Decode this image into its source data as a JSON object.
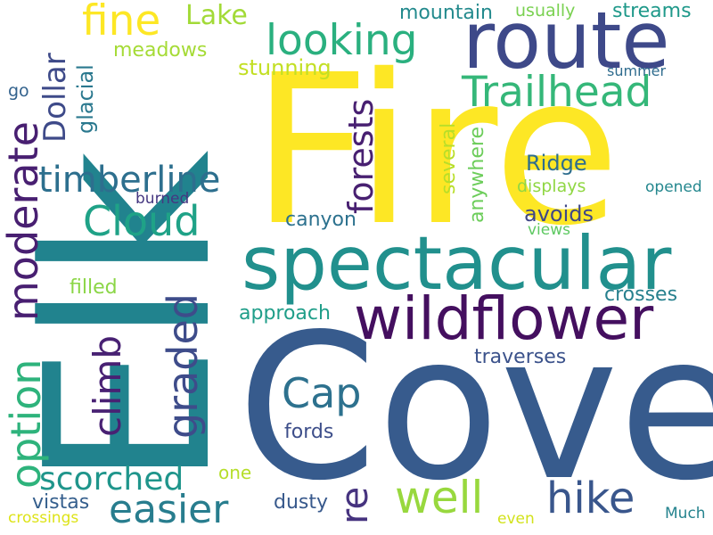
{
  "words": [
    {
      "text": "Fire",
      "color": "#fde725",
      "vertical": false
    },
    {
      "text": "Elk",
      "color": "#21838e",
      "vertical": true
    },
    {
      "text": "Cove",
      "color": "#375b8d",
      "vertical": false
    },
    {
      "text": "route",
      "color": "#3e4989",
      "vertical": false
    },
    {
      "text": "spectacular",
      "color": "#21908d",
      "vertical": false
    },
    {
      "text": "wildflower",
      "color": "#440f5f",
      "vertical": false
    },
    {
      "text": "Trailhead",
      "color": "#35b779",
      "vertical": false
    },
    {
      "text": "looking",
      "color": "#2ab07f",
      "vertical": false
    },
    {
      "text": "fine",
      "color": "#fde725",
      "vertical": false
    },
    {
      "text": "Lake",
      "color": "#a2da37",
      "vertical": false
    },
    {
      "text": "Dollar",
      "color": "#3e4a89",
      "vertical": true
    },
    {
      "text": "moderate",
      "color": "#481f71",
      "vertical": true
    },
    {
      "text": "timberline",
      "color": "#2d6f8e",
      "vertical": false
    },
    {
      "text": "Cloud",
      "color": "#1fa287",
      "vertical": false
    },
    {
      "text": "forests",
      "color": "#482071",
      "vertical": true
    },
    {
      "text": "climb",
      "color": "#482173",
      "vertical": true
    },
    {
      "text": "graded",
      "color": "#3e4c8a",
      "vertical": true
    },
    {
      "text": "option",
      "color": "#2eb37c",
      "vertical": true
    },
    {
      "text": "scorched",
      "color": "#1f958b",
      "vertical": false
    },
    {
      "text": "Cap",
      "color": "#2d718e",
      "vertical": false
    },
    {
      "text": "re",
      "color": "#46337f",
      "vertical": true
    },
    {
      "text": "easier",
      "color": "#287d8e",
      "vertical": false
    },
    {
      "text": "well",
      "color": "#98d83e",
      "vertical": false
    },
    {
      "text": "hike",
      "color": "#39568c",
      "vertical": false
    },
    {
      "text": "mountain",
      "color": "#238a8d",
      "vertical": false
    },
    {
      "text": "usually",
      "color": "#7ad151",
      "vertical": false
    },
    {
      "text": "streams",
      "color": "#1f998a",
      "vertical": false
    },
    {
      "text": "meadows",
      "color": "#a5db36",
      "vertical": false
    },
    {
      "text": "glacial",
      "color": "#2a788e",
      "vertical": true
    },
    {
      "text": "stunning",
      "color": "#c2df23",
      "vertical": false
    },
    {
      "text": "summer",
      "color": "#2f6c8e",
      "vertical": false
    },
    {
      "text": "go",
      "color": "#33628d",
      "vertical": false
    },
    {
      "text": "Ridge",
      "color": "#2e6e8e",
      "vertical": false
    },
    {
      "text": "several",
      "color": "#b8de29",
      "vertical": true
    },
    {
      "text": "anywhere",
      "color": "#6ccd5a",
      "vertical": true
    },
    {
      "text": "displays",
      "color": "#90d743",
      "vertical": false
    },
    {
      "text": "opened",
      "color": "#24878e",
      "vertical": false
    },
    {
      "text": "burned",
      "color": "#453781",
      "vertical": false
    },
    {
      "text": "canyon",
      "color": "#2c718e",
      "vertical": false
    },
    {
      "text": "avoids",
      "color": "#3f4788",
      "vertical": false
    },
    {
      "text": "views",
      "color": "#5ec962",
      "vertical": false
    },
    {
      "text": "filled",
      "color": "#8bd646",
      "vertical": false
    },
    {
      "text": "crosses",
      "color": "#27808e",
      "vertical": false
    },
    {
      "text": "approach",
      "color": "#1f9e89",
      "vertical": false
    },
    {
      "text": "traverses",
      "color": "#3b528b",
      "vertical": false
    },
    {
      "text": "fords",
      "color": "#3d4e8a",
      "vertical": false
    },
    {
      "text": "one",
      "color": "#b5de2b",
      "vertical": false
    },
    {
      "text": "dusty",
      "color": "#38598c",
      "vertical": false
    },
    {
      "text": "vistas",
      "color": "#355f8d",
      "vertical": false
    },
    {
      "text": "crossings",
      "color": "#dde318",
      "vertical": false
    },
    {
      "text": "even",
      "color": "#d2e21b",
      "vertical": false
    },
    {
      "text": "Much",
      "color": "#25838e",
      "vertical": false
    }
  ]
}
